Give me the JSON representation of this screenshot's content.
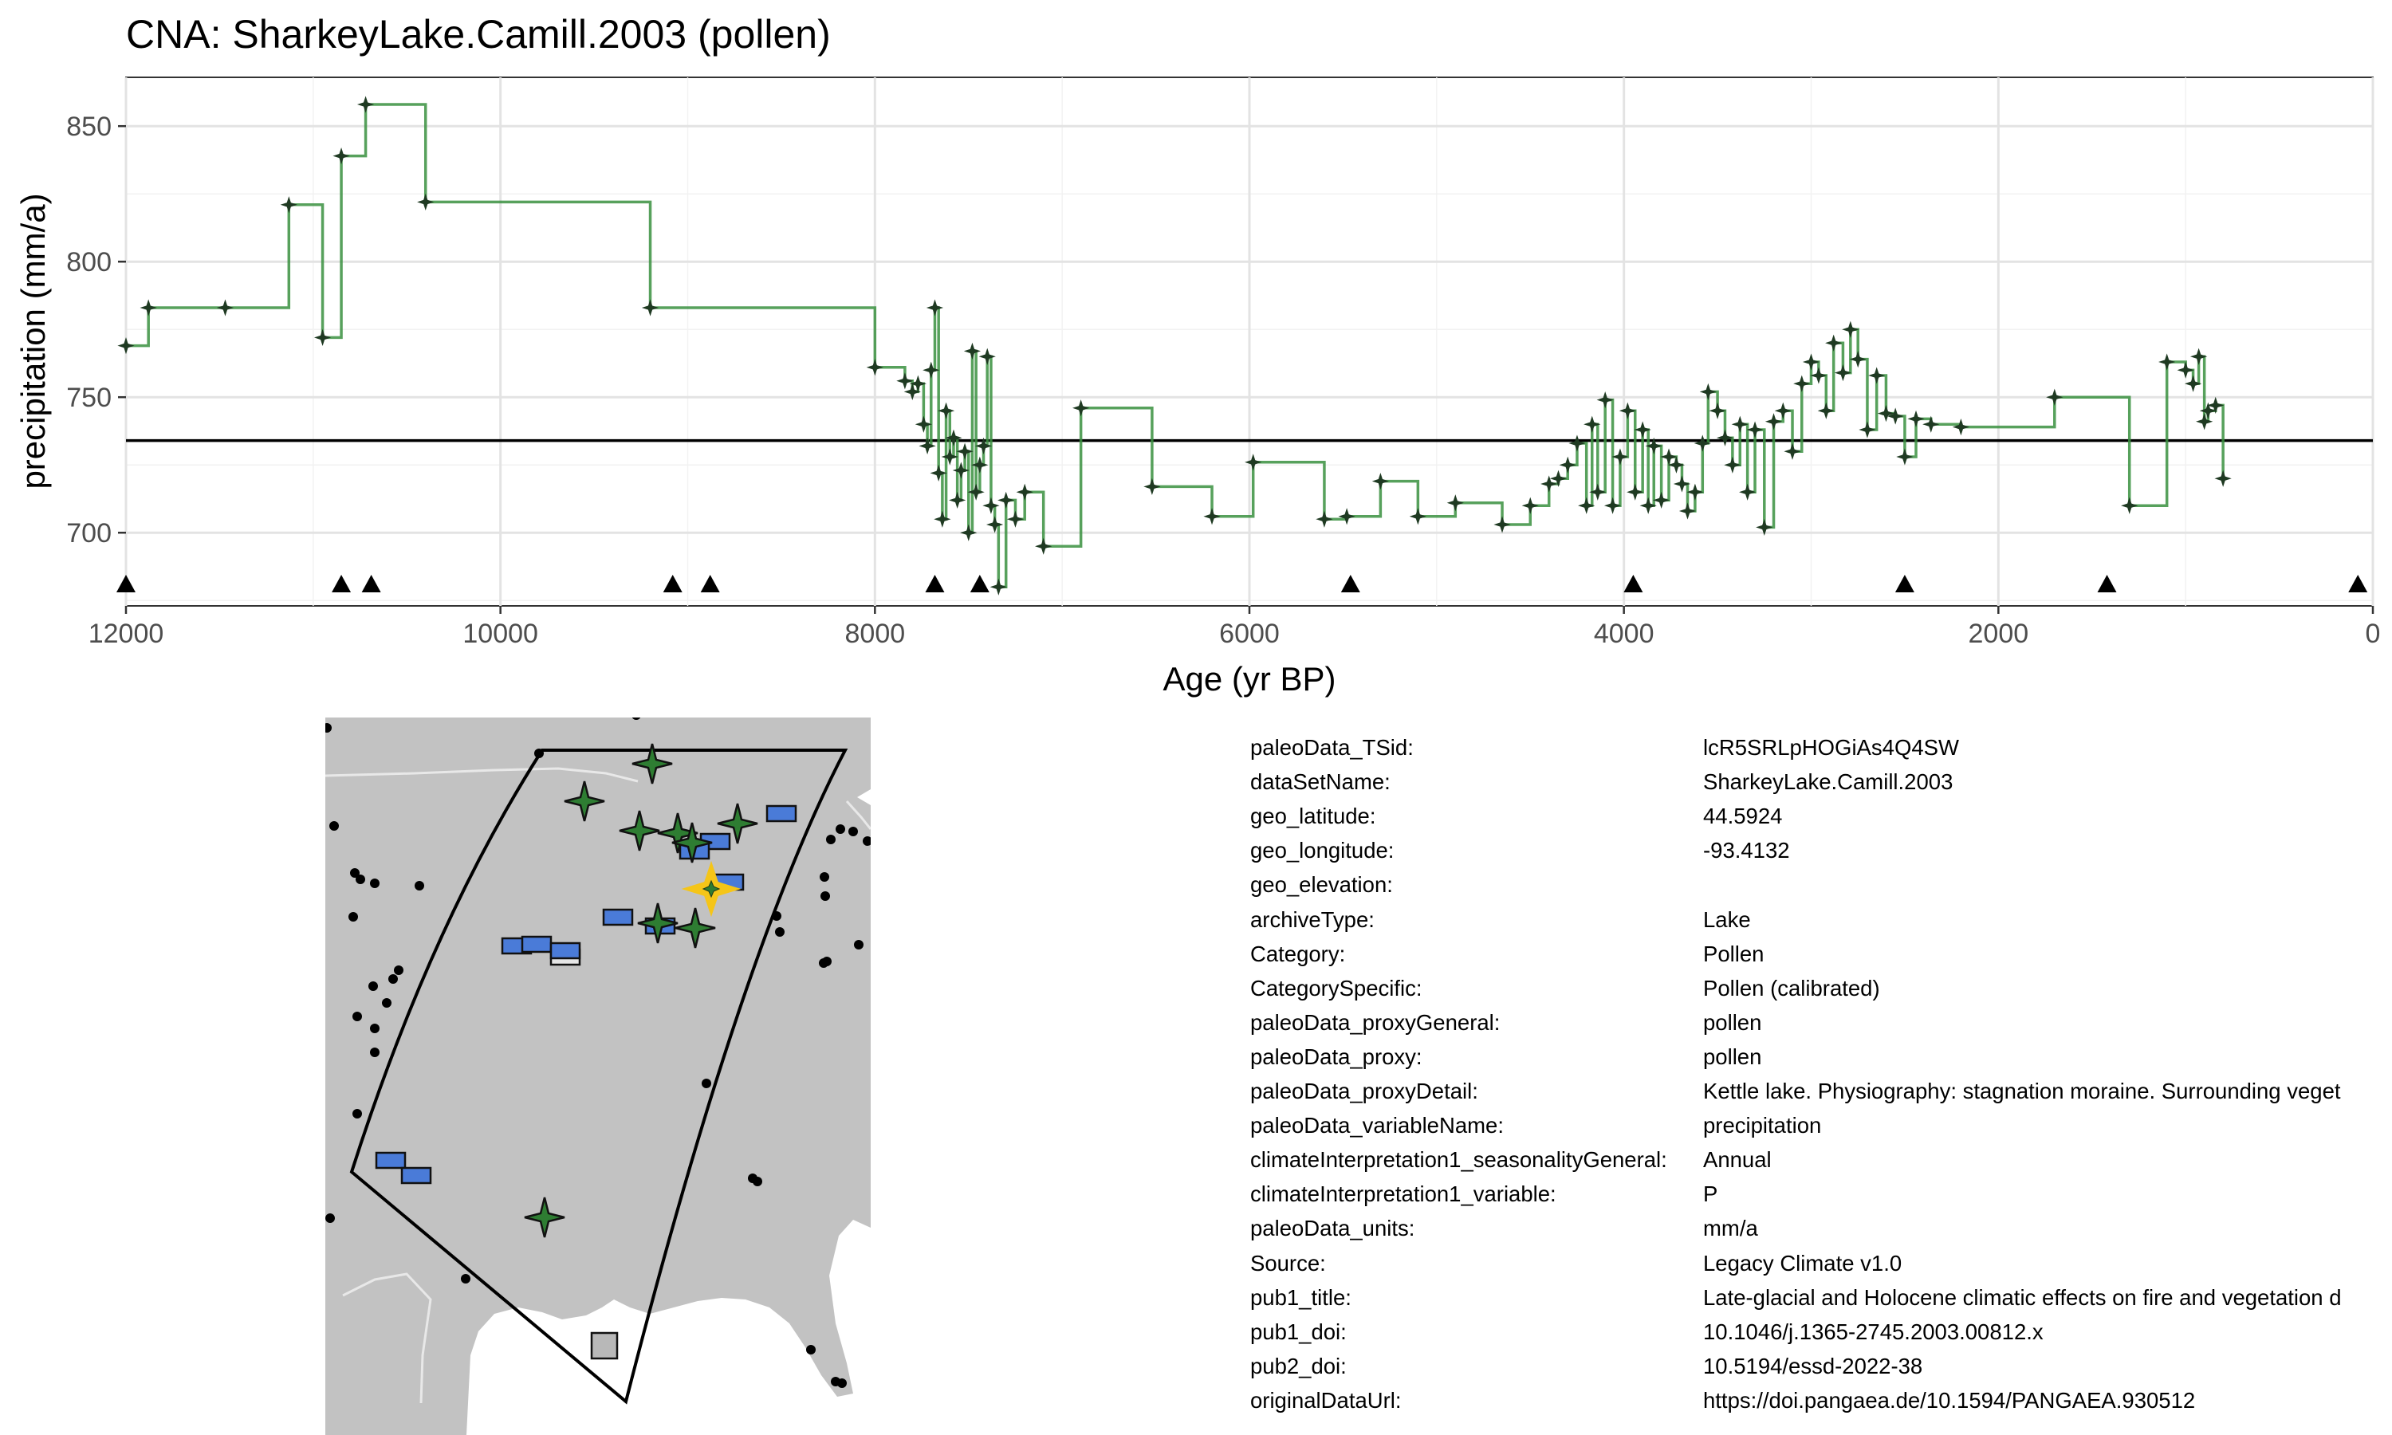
{
  "chart_data": {
    "type": "line",
    "title": "CNA: SharkeyLake.Camill.2003 (pollen)",
    "xlabel": "Age (yr BP)",
    "ylabel": "precipitation (mm/a)",
    "xlim": [
      12000,
      0
    ],
    "ylim": [
      673,
      868
    ],
    "x_ticks": [
      12000,
      10000,
      8000,
      6000,
      4000,
      2000,
      0
    ],
    "x_tick_labels": [
      "12000",
      "10000",
      "8000",
      "6000",
      "4000",
      "2000",
      "0"
    ],
    "y_ticks": [
      700,
      750,
      800,
      850
    ],
    "y_tick_labels": [
      "700",
      "750",
      "800",
      "850"
    ],
    "mean_line": 734,
    "series_color": "#3a9140",
    "point_color": "#1f3a22",
    "series": [
      {
        "name": "precipitation",
        "step": true,
        "x": [
          12000,
          11880,
          11470,
          11130,
          10950,
          10850,
          10720,
          10400,
          9200,
          8000,
          7840,
          7800,
          7770,
          7740,
          7720,
          7700,
          7680,
          7660,
          7640,
          7620,
          7600,
          7580,
          7560,
          7540,
          7520,
          7500,
          7480,
          7460,
          7440,
          7420,
          7400,
          7380,
          7360,
          7340,
          7300,
          7250,
          7200,
          7100,
          6900,
          6520,
          6200,
          5980,
          5600,
          5480,
          5300,
          5100,
          4900,
          4650,
          4500,
          4400,
          4350,
          4300,
          4250,
          4200,
          4170,
          4140,
          4100,
          4060,
          4020,
          3980,
          3940,
          3900,
          3870,
          3840,
          3800,
          3760,
          3720,
          3690,
          3660,
          3620,
          3580,
          3550,
          3500,
          3460,
          3420,
          3380,
          3340,
          3300,
          3250,
          3200,
          3150,
          3100,
          3050,
          3000,
          2960,
          2920,
          2880,
          2830,
          2790,
          2750,
          2700,
          2650,
          2600,
          2550,
          2500,
          2440,
          2360,
          2200,
          1700,
          1300,
          1100,
          1000,
          960,
          930,
          900,
          880,
          840,
          800
        ],
        "y": [
          769,
          783,
          783,
          821,
          772,
          839,
          858,
          822,
          783,
          761,
          756,
          752,
          755,
          740,
          732,
          760,
          783,
          722,
          705,
          745,
          728,
          735,
          712,
          723,
          730,
          700,
          767,
          715,
          725,
          732,
          765,
          710,
          703,
          680,
          712,
          705,
          715,
          695,
          746,
          717,
          706,
          726,
          705,
          706,
          719,
          706,
          711,
          703,
          710,
          718,
          720,
          725,
          733,
          710,
          740,
          715,
          749,
          710,
          728,
          745,
          715,
          738,
          710,
          732,
          712,
          728,
          725,
          718,
          708,
          715,
          733,
          752,
          745,
          735,
          725,
          740,
          715,
          738,
          702,
          741,
          745,
          730,
          755,
          763,
          758,
          745,
          770,
          759,
          775,
          764,
          738,
          758,
          744,
          743,
          728,
          742,
          740,
          739,
          750,
          710,
          763,
          760,
          755,
          765,
          741,
          745,
          747,
          720
        ]
      }
    ],
    "sample_ages": [
      12000,
      10850,
      10690,
      9080,
      8880,
      7680,
      7440,
      5460,
      3950,
      2500,
      1420,
      80
    ]
  },
  "map": {
    "target_color": "#f5c518",
    "region_colors": {
      "land": "#c2c2c2",
      "site_star": "#2e7d32",
      "site_box": "#4a7bd8",
      "gray_box": "#b8b8b8"
    }
  },
  "metadata": [
    {
      "key": "paleoData_TSid:",
      "value": "lcR5SRLpHOGiAs4Q4SW"
    },
    {
      "key": "dataSetName:",
      "value": "SharkeyLake.Camill.2003"
    },
    {
      "key": "geo_latitude:",
      "value": "44.5924"
    },
    {
      "key": "geo_longitude:",
      "value": "-93.4132"
    },
    {
      "key": "geo_elevation:",
      "value": ""
    },
    {
      "key": "archiveType:",
      "value": "Lake"
    },
    {
      "key": "Category:",
      "value": "Pollen"
    },
    {
      "key": "CategorySpecific:",
      "value": "Pollen (calibrated)"
    },
    {
      "key": "paleoData_proxyGeneral:",
      "value": "pollen"
    },
    {
      "key": "paleoData_proxy:",
      "value": "pollen"
    },
    {
      "key": "paleoData_proxyDetail:",
      "value": "Kettle lake. Physiography: stagnation moraine. Surrounding veget"
    },
    {
      "key": "paleoData_variableName:",
      "value": "precipitation"
    },
    {
      "key": "climateInterpretation1_seasonalityGeneral:",
      "value": "Annual"
    },
    {
      "key": "climateInterpretation1_variable:",
      "value": "P"
    },
    {
      "key": "paleoData_units:",
      "value": "mm/a"
    },
    {
      "key": "Source:",
      "value": "Legacy Climate v1.0"
    },
    {
      "key": "pub1_title:",
      "value": "Late-glacial and Holocene climatic effects on fire and vegetation d"
    },
    {
      "key": "pub1_doi:",
      "value": "10.1046/j.1365-2745.2003.00812.x"
    },
    {
      "key": "pub2_doi:",
      "value": "10.5194/essd-2022-38"
    },
    {
      "key": "originalDataUrl:",
      "value": "https://doi.pangaea.de/10.1594/PANGAEA.930512"
    }
  ]
}
